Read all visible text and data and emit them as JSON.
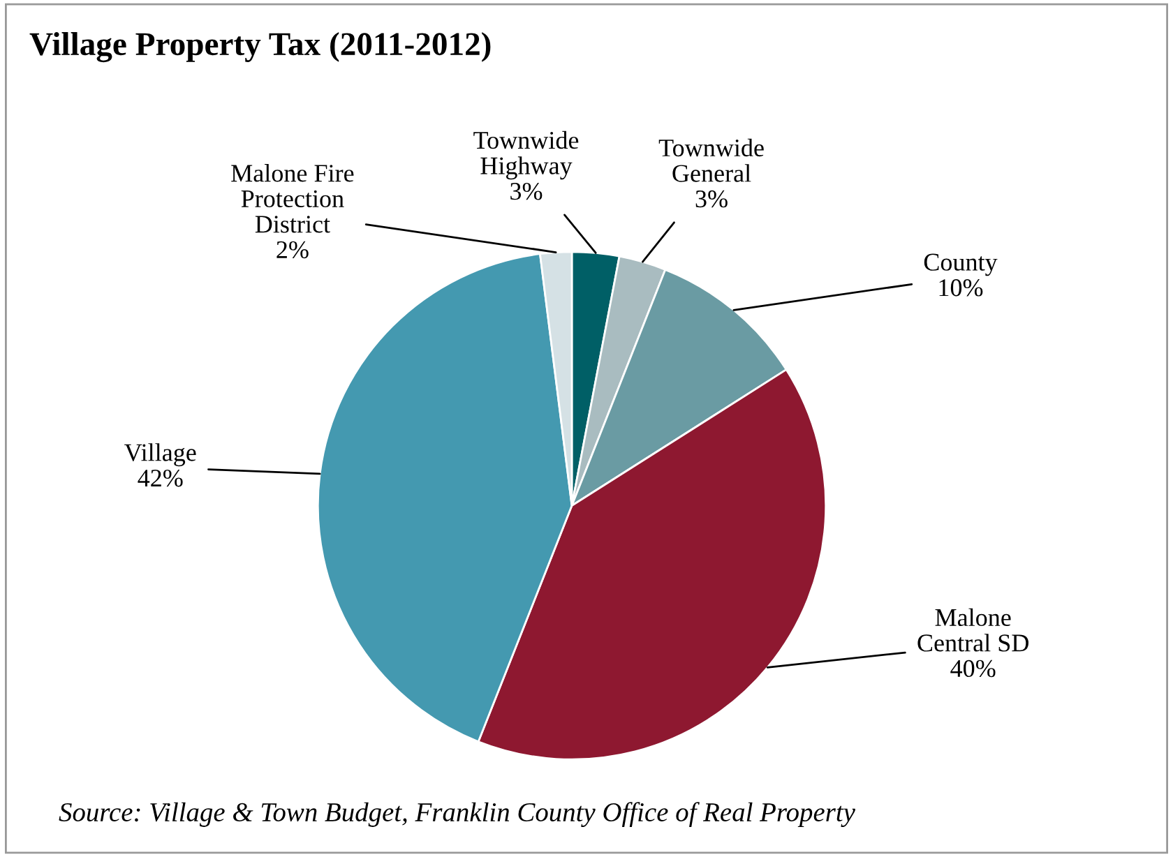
{
  "chart_data": {
    "type": "pie",
    "title": "Village Property Tax (2011-2012)",
    "categories": [
      "Townwide\nHighway",
      "Townwide\nGeneral",
      "County",
      "Malone\nCentral SD",
      "Village",
      "Malone Fire\nProtection\nDistrict"
    ],
    "values": [
      3,
      3,
      10,
      40,
      42,
      2
    ],
    "value_labels": [
      "3%",
      "3%",
      "10%",
      "40%",
      "42%",
      "2%"
    ],
    "colors": [
      "#005f66",
      "#a9bcc0",
      "#6a9ba3",
      "#8e1830",
      "#4499b0",
      "#d5e1e5"
    ],
    "annotations": [
      "Source: Village & Town Budget, Franklin County Office of Real Property"
    ]
  }
}
